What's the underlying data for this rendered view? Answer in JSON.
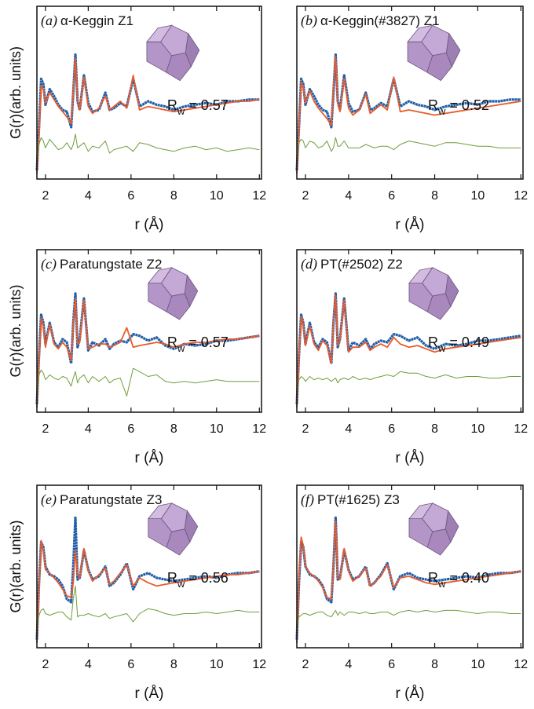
{
  "chart_data": [
    {
      "type": "line",
      "panel_label": "(a)",
      "title": "α-Keggin Z1",
      "ylabel": "G(r)(arb. units)",
      "xlabel": "r (Å)",
      "annotation": {
        "symbol": "R",
        "subscript": "w",
        "text": "= 0.57"
      },
      "xlim": [
        1.6,
        12.1
      ],
      "xticks": [
        2,
        4,
        6,
        8,
        10,
        12
      ],
      "ylim": [
        0,
        10
      ],
      "x": [
        1.6,
        1.7,
        1.8,
        1.9,
        2.0,
        2.2,
        2.4,
        2.6,
        2.8,
        3.0,
        3.2,
        3.3,
        3.4,
        3.5,
        3.6,
        3.8,
        4.0,
        4.2,
        4.5,
        4.8,
        5.0,
        5.2,
        5.5,
        5.8,
        6.1,
        6.4,
        6.8,
        7.2,
        7.6,
        8.0,
        8.5,
        9.0,
        9.5,
        10.0,
        10.5,
        11.0,
        11.5,
        12.0
      ],
      "series": [
        {
          "color": "#1f5ea8",
          "values": [
            0.5,
            3.0,
            5.8,
            5.5,
            4.3,
            5.2,
            4.8,
            4.3,
            4.0,
            3.9,
            3.0,
            5.0,
            7.2,
            4.5,
            4.0,
            6.0,
            4.4,
            3.9,
            4.0,
            5.0,
            4.0,
            4.1,
            4.4,
            4.2,
            5.8,
            4.2,
            4.5,
            4.3,
            4.2,
            4.0,
            4.2,
            4.3,
            4.4,
            4.3,
            4.5,
            4.5,
            4.6,
            4.6
          ]
        },
        {
          "color": "#ea5a2a",
          "values": [
            0.3,
            2.5,
            5.4,
            5.2,
            4.4,
            5.0,
            4.6,
            4.2,
            3.9,
            3.6,
            3.2,
            5.0,
            7.0,
            4.6,
            4.0,
            5.9,
            4.2,
            3.8,
            4.1,
            4.8,
            4.0,
            4.2,
            4.5,
            4.1,
            6.0,
            4.0,
            4.2,
            4.1,
            4.0,
            3.9,
            4.0,
            4.1,
            4.2,
            4.3,
            4.4,
            4.5,
            4.5,
            4.6
          ]
        },
        {
          "color": "#6f9e3c",
          "values": [
            1.0,
            2.0,
            2.4,
            2.2,
            1.8,
            2.3,
            2.0,
            1.7,
            1.8,
            2.1,
            1.7,
            2.0,
            2.6,
            1.8,
            1.9,
            2.1,
            1.6,
            1.9,
            1.8,
            2.2,
            1.5,
            1.7,
            1.8,
            1.9,
            1.6,
            2.1,
            2.0,
            1.8,
            1.7,
            1.6,
            1.8,
            1.9,
            1.7,
            1.8,
            1.6,
            1.7,
            1.8,
            1.7
          ]
        }
      ]
    },
    {
      "type": "line",
      "panel_label": "(b)",
      "title": "α-Keggin(#3827) Z1",
      "xlabel": "r (Å)",
      "annotation": {
        "symbol": "R",
        "subscript": "w",
        "text": "= 0.52"
      },
      "xlim": [
        1.6,
        12.1
      ],
      "xticks": [
        2,
        4,
        6,
        8,
        10,
        12
      ],
      "ylim": [
        0,
        10
      ],
      "x": [
        1.6,
        1.7,
        1.8,
        1.9,
        2.0,
        2.2,
        2.4,
        2.6,
        2.8,
        3.0,
        3.2,
        3.3,
        3.4,
        3.5,
        3.6,
        3.8,
        4.0,
        4.2,
        4.5,
        4.8,
        5.0,
        5.2,
        5.5,
        5.8,
        6.1,
        6.4,
        6.8,
        7.2,
        7.6,
        8.0,
        8.5,
        9.0,
        9.5,
        10.0,
        10.5,
        11.0,
        11.5,
        12.0
      ],
      "series": [
        {
          "color": "#1f5ea8",
          "values": [
            0.5,
            3.0,
            5.8,
            5.5,
            4.3,
            5.2,
            4.8,
            4.3,
            4.0,
            3.9,
            3.0,
            5.0,
            7.2,
            4.5,
            4.0,
            6.0,
            4.4,
            3.9,
            4.0,
            5.0,
            4.0,
            4.1,
            4.4,
            4.2,
            5.8,
            4.2,
            4.5,
            4.3,
            4.2,
            4.0,
            4.2,
            4.3,
            4.4,
            4.3,
            4.5,
            4.5,
            4.6,
            4.6
          ]
        },
        {
          "color": "#ea5a2a",
          "values": [
            0.3,
            2.8,
            5.6,
            5.3,
            4.4,
            5.1,
            4.5,
            4.1,
            3.8,
            3.5,
            3.1,
            5.2,
            7.1,
            4.4,
            3.9,
            5.8,
            4.1,
            3.7,
            4.0,
            4.9,
            3.8,
            4.0,
            4.3,
            4.0,
            5.9,
            3.9,
            4.0,
            3.9,
            3.8,
            3.7,
            3.8,
            3.9,
            4.0,
            4.1,
            4.2,
            4.3,
            4.4,
            4.5
          ]
        },
        {
          "color": "#6f9e3c",
          "values": [
            1.2,
            2.1,
            2.3,
            2.2,
            1.8,
            2.2,
            2.1,
            1.8,
            1.9,
            2.2,
            1.6,
            1.8,
            2.4,
            1.9,
            1.9,
            2.2,
            1.8,
            1.8,
            1.8,
            2.0,
            1.9,
            1.8,
            1.9,
            1.9,
            1.7,
            2.0,
            2.2,
            2.1,
            2.0,
            1.9,
            2.1,
            2.1,
            2.0,
            1.9,
            1.9,
            1.8,
            1.8,
            1.8
          ]
        }
      ]
    },
    {
      "type": "line",
      "panel_label": "(c)",
      "title": "Paratungstate Z2",
      "ylabel": "G(r)(arb. units)",
      "xlabel": "r (Å)",
      "annotation": {
        "symbol": "R",
        "subscript": "w",
        "text": "= 0.57"
      },
      "xlim": [
        1.6,
        12.1
      ],
      "xticks": [
        2,
        4,
        6,
        8,
        10,
        12
      ],
      "ylim": [
        0,
        10
      ],
      "x": [
        1.6,
        1.7,
        1.8,
        1.9,
        2.0,
        2.2,
        2.4,
        2.6,
        2.8,
        3.0,
        3.2,
        3.3,
        3.4,
        3.5,
        3.6,
        3.8,
        4.0,
        4.2,
        4.5,
        4.8,
        5.0,
        5.2,
        5.5,
        5.8,
        6.1,
        6.4,
        6.8,
        7.2,
        7.6,
        8.0,
        8.5,
        9.0,
        9.5,
        10.0,
        10.5,
        11.0,
        11.5,
        12.0
      ],
      "series": [
        {
          "color": "#1f5ea8",
          "values": [
            0.5,
            3.5,
            6.0,
            5.5,
            4.2,
            5.5,
            4.3,
            4.0,
            4.5,
            4.3,
            3.0,
            5.5,
            7.3,
            4.0,
            4.5,
            7.0,
            3.8,
            4.3,
            4.1,
            4.5,
            3.9,
            4.2,
            4.4,
            4.3,
            4.8,
            4.7,
            4.4,
            4.6,
            4.1,
            3.9,
            4.2,
            4.1,
            4.2,
            4.4,
            4.4,
            4.5,
            4.6,
            4.7
          ]
        },
        {
          "color": "#ea5a2a",
          "values": [
            0.3,
            3.0,
            5.8,
            5.3,
            4.0,
            5.4,
            4.2,
            3.9,
            4.3,
            4.0,
            3.2,
            5.3,
            7.0,
            4.2,
            4.3,
            6.9,
            3.9,
            4.0,
            4.2,
            4.2,
            4.0,
            4.1,
            4.3,
            5.2,
            4.0,
            4.1,
            4.2,
            4.3,
            4.2,
            4.0,
            4.2,
            4.3,
            4.3,
            4.4,
            4.5,
            4.5,
            4.6,
            4.7
          ]
        },
        {
          "color": "#6f9e3c",
          "values": [
            1.0,
            2.3,
            2.6,
            2.4,
            2.0,
            2.3,
            2.1,
            2.0,
            2.2,
            2.1,
            1.6,
            2.1,
            2.5,
            1.8,
            2.1,
            2.3,
            1.8,
            2.2,
            1.9,
            2.2,
            1.8,
            2.0,
            2.1,
            1.0,
            2.7,
            2.5,
            2.2,
            2.3,
            1.9,
            1.8,
            1.9,
            1.8,
            1.9,
            2.0,
            1.9,
            1.9,
            1.9,
            1.9
          ]
        }
      ]
    },
    {
      "type": "line",
      "panel_label": "(d)",
      "title": "PT(#2502) Z2",
      "xlabel": "r (Å)",
      "annotation": {
        "symbol": "R",
        "subscript": "w",
        "text": "= 0.49"
      },
      "xlim": [
        1.6,
        12.1
      ],
      "xticks": [
        2,
        4,
        6,
        8,
        10,
        12
      ],
      "ylim": [
        0,
        10
      ],
      "x": [
        1.6,
        1.7,
        1.8,
        1.9,
        2.0,
        2.2,
        2.4,
        2.6,
        2.8,
        3.0,
        3.2,
        3.3,
        3.4,
        3.5,
        3.6,
        3.8,
        4.0,
        4.2,
        4.5,
        4.8,
        5.0,
        5.2,
        5.5,
        5.8,
        6.1,
        6.4,
        6.8,
        7.2,
        7.6,
        8.0,
        8.5,
        9.0,
        9.5,
        10.0,
        10.5,
        11.0,
        11.5,
        12.0
      ],
      "series": [
        {
          "color": "#1f5ea8",
          "values": [
            0.5,
            3.5,
            6.0,
            5.5,
            4.2,
            5.5,
            4.3,
            4.0,
            4.5,
            4.3,
            3.0,
            5.5,
            7.3,
            4.0,
            4.5,
            7.0,
            3.8,
            4.3,
            4.1,
            4.5,
            3.9,
            4.2,
            4.4,
            4.3,
            4.8,
            4.7,
            4.4,
            4.6,
            4.1,
            3.9,
            4.2,
            4.1,
            4.2,
            4.4,
            4.4,
            4.5,
            4.6,
            4.7
          ]
        },
        {
          "color": "#ea5a2a",
          "values": [
            0.3,
            3.3,
            5.9,
            5.4,
            4.1,
            5.3,
            4.2,
            3.8,
            4.4,
            4.1,
            3.0,
            5.4,
            7.2,
            4.1,
            4.4,
            6.9,
            3.7,
            4.0,
            4.0,
            4.3,
            3.8,
            4.0,
            4.2,
            4.0,
            4.6,
            4.2,
            4.0,
            4.1,
            3.9,
            3.7,
            3.9,
            4.0,
            4.1,
            4.2,
            4.3,
            4.4,
            4.5,
            4.6
          ]
        },
        {
          "color": "#6f9e3c",
          "values": [
            1.1,
            2.0,
            2.2,
            2.1,
            1.9,
            2.2,
            2.0,
            2.1,
            2.0,
            2.1,
            1.9,
            2.0,
            2.1,
            1.8,
            2.0,
            2.1,
            2.0,
            2.2,
            2.0,
            2.1,
            2.0,
            2.1,
            2.2,
            2.3,
            2.2,
            2.5,
            2.4,
            2.4,
            2.2,
            2.1,
            2.3,
            2.1,
            2.2,
            2.2,
            2.1,
            2.1,
            2.2,
            2.2
          ]
        }
      ]
    },
    {
      "type": "line",
      "panel_label": "(e)",
      "title": "Paratungstate Z3",
      "ylabel": "G(r)(arb. units)",
      "xlabel": "r (Å)",
      "annotation": {
        "symbol": "R",
        "subscript": "w",
        "text": "= 0.56"
      },
      "xlim": [
        1.6,
        12.1
      ],
      "xticks": [
        2,
        4,
        6,
        8,
        10,
        12
      ],
      "ylim": [
        0,
        10
      ],
      "x": [
        1.6,
        1.7,
        1.8,
        1.9,
        2.0,
        2.2,
        2.4,
        2.6,
        2.8,
        3.0,
        3.2,
        3.3,
        3.4,
        3.5,
        3.6,
        3.8,
        4.0,
        4.2,
        4.5,
        4.8,
        5.0,
        5.2,
        5.5,
        5.8,
        6.1,
        6.4,
        6.8,
        7.2,
        7.6,
        8.0,
        8.5,
        9.0,
        9.5,
        10.0,
        10.5,
        11.0,
        11.5,
        12.0
      ],
      "series": [
        {
          "color": "#1f5ea8",
          "values": [
            0.5,
            4.0,
            6.5,
            6.2,
            5.0,
            4.5,
            4.4,
            4.2,
            3.8,
            3.0,
            2.8,
            5.0,
            8.0,
            4.2,
            4.3,
            6.0,
            4.8,
            4.2,
            4.4,
            5.0,
            3.8,
            4.0,
            4.5,
            5.2,
            3.6,
            4.4,
            4.6,
            4.3,
            4.2,
            4.1,
            4.2,
            4.3,
            4.4,
            4.3,
            4.5,
            4.6,
            4.6,
            4.7
          ]
        },
        {
          "color": "#ea5a2a",
          "values": [
            0.3,
            3.5,
            6.6,
            6.0,
            4.8,
            4.6,
            4.3,
            4.0,
            3.6,
            3.2,
            3.1,
            4.0,
            6.0,
            4.5,
            4.3,
            6.1,
            4.7,
            4.1,
            4.5,
            4.9,
            3.9,
            4.1,
            4.6,
            5.1,
            3.8,
            4.3,
            4.0,
            3.8,
            3.9,
            4.0,
            4.1,
            4.2,
            4.3,
            4.4,
            4.5,
            4.5,
            4.6,
            4.7
          ]
        },
        {
          "color": "#6f9e3c",
          "values": [
            1.2,
            2.0,
            2.3,
            2.4,
            2.1,
            2.0,
            2.1,
            2.2,
            2.2,
            1.9,
            1.7,
            3.0,
            3.8,
            1.9,
            2.0,
            2.0,
            2.1,
            2.0,
            1.9,
            2.1,
            1.8,
            1.9,
            2.0,
            2.1,
            1.6,
            2.1,
            2.4,
            2.3,
            2.1,
            2.0,
            2.1,
            2.1,
            2.2,
            2.1,
            2.2,
            2.3,
            2.2,
            2.2
          ]
        }
      ]
    },
    {
      "type": "line",
      "panel_label": "(f)",
      "title": "PT(#1625) Z3",
      "xlabel": "r (Å)",
      "annotation": {
        "symbol": "R",
        "subscript": "w",
        "text": "= 0.40"
      },
      "xlim": [
        1.6,
        12.1
      ],
      "xticks": [
        2,
        4,
        6,
        8,
        10,
        12
      ],
      "ylim": [
        0,
        10
      ],
      "x": [
        1.6,
        1.7,
        1.8,
        1.9,
        2.0,
        2.2,
        2.4,
        2.6,
        2.8,
        3.0,
        3.2,
        3.3,
        3.4,
        3.5,
        3.6,
        3.8,
        4.0,
        4.2,
        4.5,
        4.8,
        5.0,
        5.2,
        5.5,
        5.8,
        6.1,
        6.4,
        6.8,
        7.2,
        7.6,
        8.0,
        8.5,
        9.0,
        9.5,
        10.0,
        10.5,
        11.0,
        11.5,
        12.0
      ],
      "series": [
        {
          "color": "#1f5ea8",
          "values": [
            0.5,
            4.0,
            6.5,
            6.2,
            5.0,
            4.5,
            4.4,
            4.2,
            3.8,
            3.0,
            2.8,
            5.0,
            8.0,
            4.2,
            4.3,
            6.0,
            4.8,
            4.2,
            4.4,
            5.0,
            3.8,
            4.0,
            4.5,
            5.2,
            3.6,
            4.4,
            4.6,
            4.3,
            4.2,
            4.1,
            4.2,
            4.3,
            4.4,
            4.3,
            4.5,
            4.6,
            4.6,
            4.7
          ]
        },
        {
          "color": "#ea5a2a",
          "values": [
            0.3,
            4.2,
            6.8,
            6.3,
            5.0,
            4.6,
            4.4,
            4.1,
            3.7,
            3.1,
            3.0,
            5.0,
            7.8,
            4.3,
            4.2,
            6.1,
            4.7,
            4.1,
            4.4,
            4.9,
            3.8,
            4.0,
            4.4,
            5.1,
            3.7,
            4.3,
            4.4,
            4.2,
            4.0,
            3.9,
            4.0,
            4.1,
            4.2,
            4.3,
            4.4,
            4.5,
            4.6,
            4.7
          ]
        },
        {
          "color": "#6f9e3c",
          "values": [
            1.1,
            1.9,
            2.0,
            2.1,
            2.1,
            2.0,
            2.1,
            2.2,
            2.2,
            2.0,
            1.9,
            2.1,
            2.3,
            2.0,
            2.2,
            2.0,
            2.2,
            2.2,
            2.1,
            2.2,
            2.1,
            2.1,
            2.2,
            2.2,
            2.0,
            2.2,
            2.3,
            2.2,
            2.3,
            2.2,
            2.3,
            2.3,
            2.2,
            2.1,
            2.2,
            2.2,
            2.1,
            2.1
          ]
        }
      ]
    }
  ]
}
